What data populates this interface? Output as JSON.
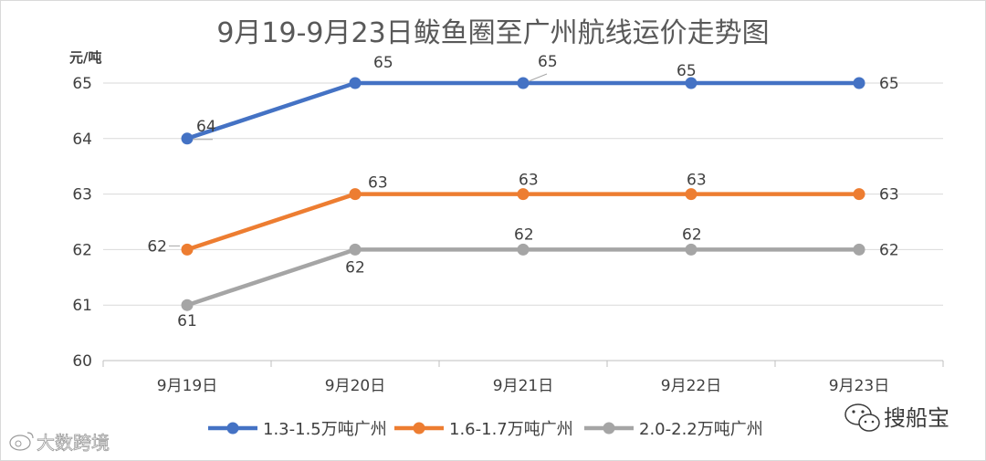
{
  "chart_data": {
    "type": "line",
    "title": "9月19-9月23日鲅鱼圈至广州航线运价走势图",
    "ylabel": "元/吨",
    "xlabel": "",
    "categories": [
      "9月19日",
      "9月20日",
      "9月21日",
      "9月22日",
      "9月23日"
    ],
    "ylim": [
      60,
      65
    ],
    "yticks": [
      60,
      61,
      62,
      63,
      64,
      65
    ],
    "grid": true,
    "legend_position": "bottom",
    "series": [
      {
        "name": "1.3-1.5万吨广州",
        "color": "#4472c4",
        "values": [
          64,
          65,
          65,
          65,
          65
        ]
      },
      {
        "name": "1.6-1.7万吨广州",
        "color": "#ed7d31",
        "values": [
          62,
          63,
          63,
          63,
          63
        ]
      },
      {
        "name": "2.0-2.2万吨广州",
        "color": "#a5a5a5",
        "values": [
          61,
          62,
          62,
          62,
          62
        ]
      }
    ]
  },
  "watermarks": {
    "left": "大数跨境",
    "right": "搜船宝"
  }
}
